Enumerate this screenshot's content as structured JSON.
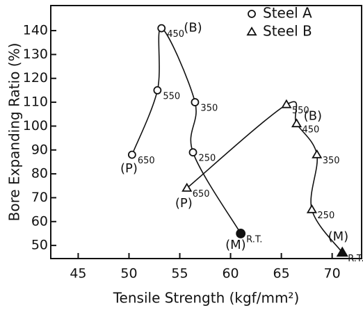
{
  "chart_data": {
    "type": "scatter",
    "xlabel": "Tensile Strength (kgf/mm²)",
    "ylabel": "Bore Expanding Ratio (%)",
    "xlim": [
      42.3,
      72.9
    ],
    "ylim": [
      44.5,
      150.5
    ],
    "xticks": [
      45,
      50,
      55,
      60,
      65,
      70
    ],
    "yticks": [
      50,
      60,
      70,
      80,
      90,
      100,
      110,
      120,
      130,
      140
    ],
    "legend": "upper right",
    "series": [
      {
        "name": "Steel A",
        "marker": "circle",
        "color": "#111",
        "x": [
          50.3,
          52.8,
          53.2,
          56.5,
          56.3,
          61.0
        ],
        "values": [
          88,
          115,
          141,
          110,
          89,
          55
        ],
        "labels": [
          "650",
          "550",
          "450",
          "350",
          "250",
          "R.T."
        ],
        "filled": [
          false,
          false,
          false,
          false,
          false,
          true
        ]
      },
      {
        "name": "Steel B",
        "marker": "triangle",
        "color": "#111",
        "x": [
          55.7,
          65.5,
          66.5,
          68.5,
          68.0,
          71.0
        ],
        "values": [
          74,
          109,
          101,
          88,
          65,
          47
        ],
        "labels": [
          "650",
          "550",
          "450",
          "350",
          "250",
          "R.T."
        ],
        "filled": [
          false,
          false,
          false,
          false,
          false,
          true
        ]
      }
    ],
    "annotations": [
      {
        "text": "(B)",
        "x": 56.3,
        "y": 141
      },
      {
        "text": "(P)",
        "x": 50.0,
        "y": 82
      },
      {
        "text": "(M)",
        "x": 60.5,
        "y": 50
      },
      {
        "text": "(P)",
        "x": 55.4,
        "y": 67.5
      },
      {
        "text": "(B)",
        "x": 68.1,
        "y": 104
      },
      {
        "text": "(M)",
        "x": 70.6,
        "y": 53.5
      }
    ]
  }
}
